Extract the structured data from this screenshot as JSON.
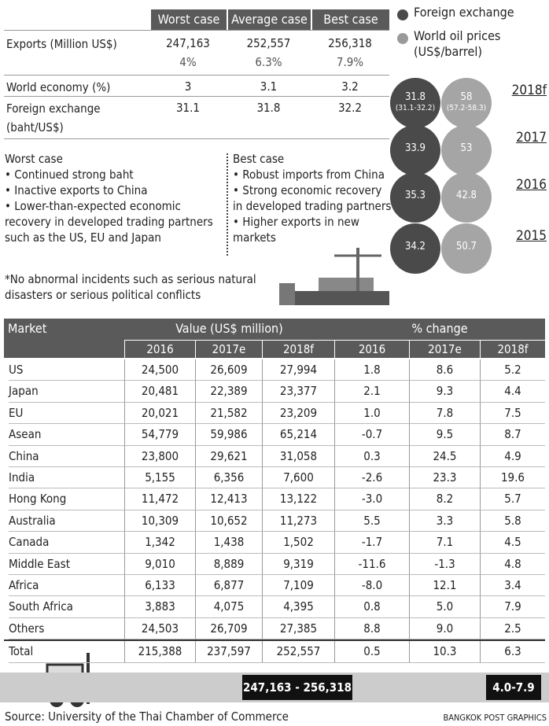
{
  "scenario_table": {
    "headers": [
      "Worst case",
      "Average case",
      "Best case"
    ],
    "rows": [
      {
        "label": "Exports (Million US$)",
        "values": [
          "247,163",
          "252,557",
          "256,318"
        ],
        "sub": [
          "4%",
          "6.3%",
          "7.9%"
        ]
      },
      {
        "label": "World economy (%)",
        "values": [
          "3",
          "3.1",
          "3.2"
        ]
      },
      {
        "label": "Foreign exchange (baht/US$)",
        "values": [
          "31.1",
          "31.8",
          "32.2"
        ]
      }
    ]
  },
  "legend": [
    "Foreign exchange",
    "World oil prices (US$/barrel)"
  ],
  "bubbles": [
    {
      "year": "2018f",
      "fx": "31.8",
      "fx_range": "(31.1-32.2)",
      "oil": "58",
      "oil_range": "(57.2-58.3)"
    },
    {
      "year": "2017",
      "fx": "33.9",
      "oil": "53"
    },
    {
      "year": "2016",
      "fx": "35.3",
      "oil": "42.8"
    },
    {
      "year": "2015",
      "fx": "34.2",
      "oil": "50.7"
    }
  ],
  "worst_case": {
    "title": "Worst case",
    "items": [
      "• Continued strong baht",
      "• Inactive exports to China",
      "• Lower-than-expected economic recovery in developed trading partners such as the US, EU and Japan"
    ]
  },
  "best_case": {
    "title": "Best case",
    "items": [
      "• Robust imports from China",
      "• Strong economic recovery in developed trading partners",
      "• Higher exports in new markets"
    ]
  },
  "note": "*No abnormal incidents such as serious natural disasters or serious political conflicts",
  "market_table": {
    "headers": [
      "Market",
      "Value (US$ million)",
      "% change"
    ],
    "years": [
      "2016",
      "2017e",
      "2018f",
      "2016",
      "2017e",
      "2018f"
    ],
    "rows": [
      [
        "US",
        "24,500",
        "26,609",
        "27,994",
        "1.8",
        "8.6",
        "5.2"
      ],
      [
        "Japan",
        "20,481",
        "22,389",
        "23,377",
        "2.1",
        "9.3",
        "4.4"
      ],
      [
        "EU",
        "20,021",
        "21,582",
        "23,209",
        "1.0",
        "7.8",
        "7.5"
      ],
      [
        "Asean",
        "54,779",
        "59,986",
        "65,214",
        "-0.7",
        "9.5",
        "8.7"
      ],
      [
        "China",
        "23,800",
        "29,621",
        "31,058",
        "0.3",
        "24.5",
        "4.9"
      ],
      [
        "India",
        "5,155",
        "6,356",
        "7,600",
        "-2.6",
        "23.3",
        "19.6"
      ],
      [
        "Hong Kong",
        "11,472",
        "12,413",
        "13,122",
        "-3.0",
        "8.2",
        "5.7"
      ],
      [
        "Australia",
        "10,309",
        "10,652",
        "11,273",
        "5.5",
        "3.3",
        "5.8"
      ],
      [
        "Canada",
        "1,342",
        "1,438",
        "1,502",
        "-1.7",
        "7.1",
        "4.5"
      ],
      [
        "Middle East",
        "9,010",
        "8,889",
        "9,319",
        "-11.6",
        "-1.3",
        "4.8"
      ],
      [
        "Africa",
        "6,133",
        "6,877",
        "7,109",
        "-8.0",
        "12.1",
        "3.4"
      ],
      [
        "South Africa",
        "3,883",
        "4,075",
        "4,395",
        "0.8",
        "5.0",
        "7.9"
      ],
      [
        "Others",
        "24,503",
        "26,709",
        "27,385",
        "8.8",
        "9.0",
        "2.5"
      ]
    ],
    "total": [
      "Total",
      "215,388",
      "237,597",
      "252,557",
      "0.5",
      "10.3",
      "6.3"
    ]
  },
  "banner": {
    "value_range": "247,163 - 256,318",
    "change_range": "4.0-7.9"
  },
  "source": "Source: University of the Thai Chamber of Commerce",
  "credit": "BANGKOK POST GRAPHICS"
}
